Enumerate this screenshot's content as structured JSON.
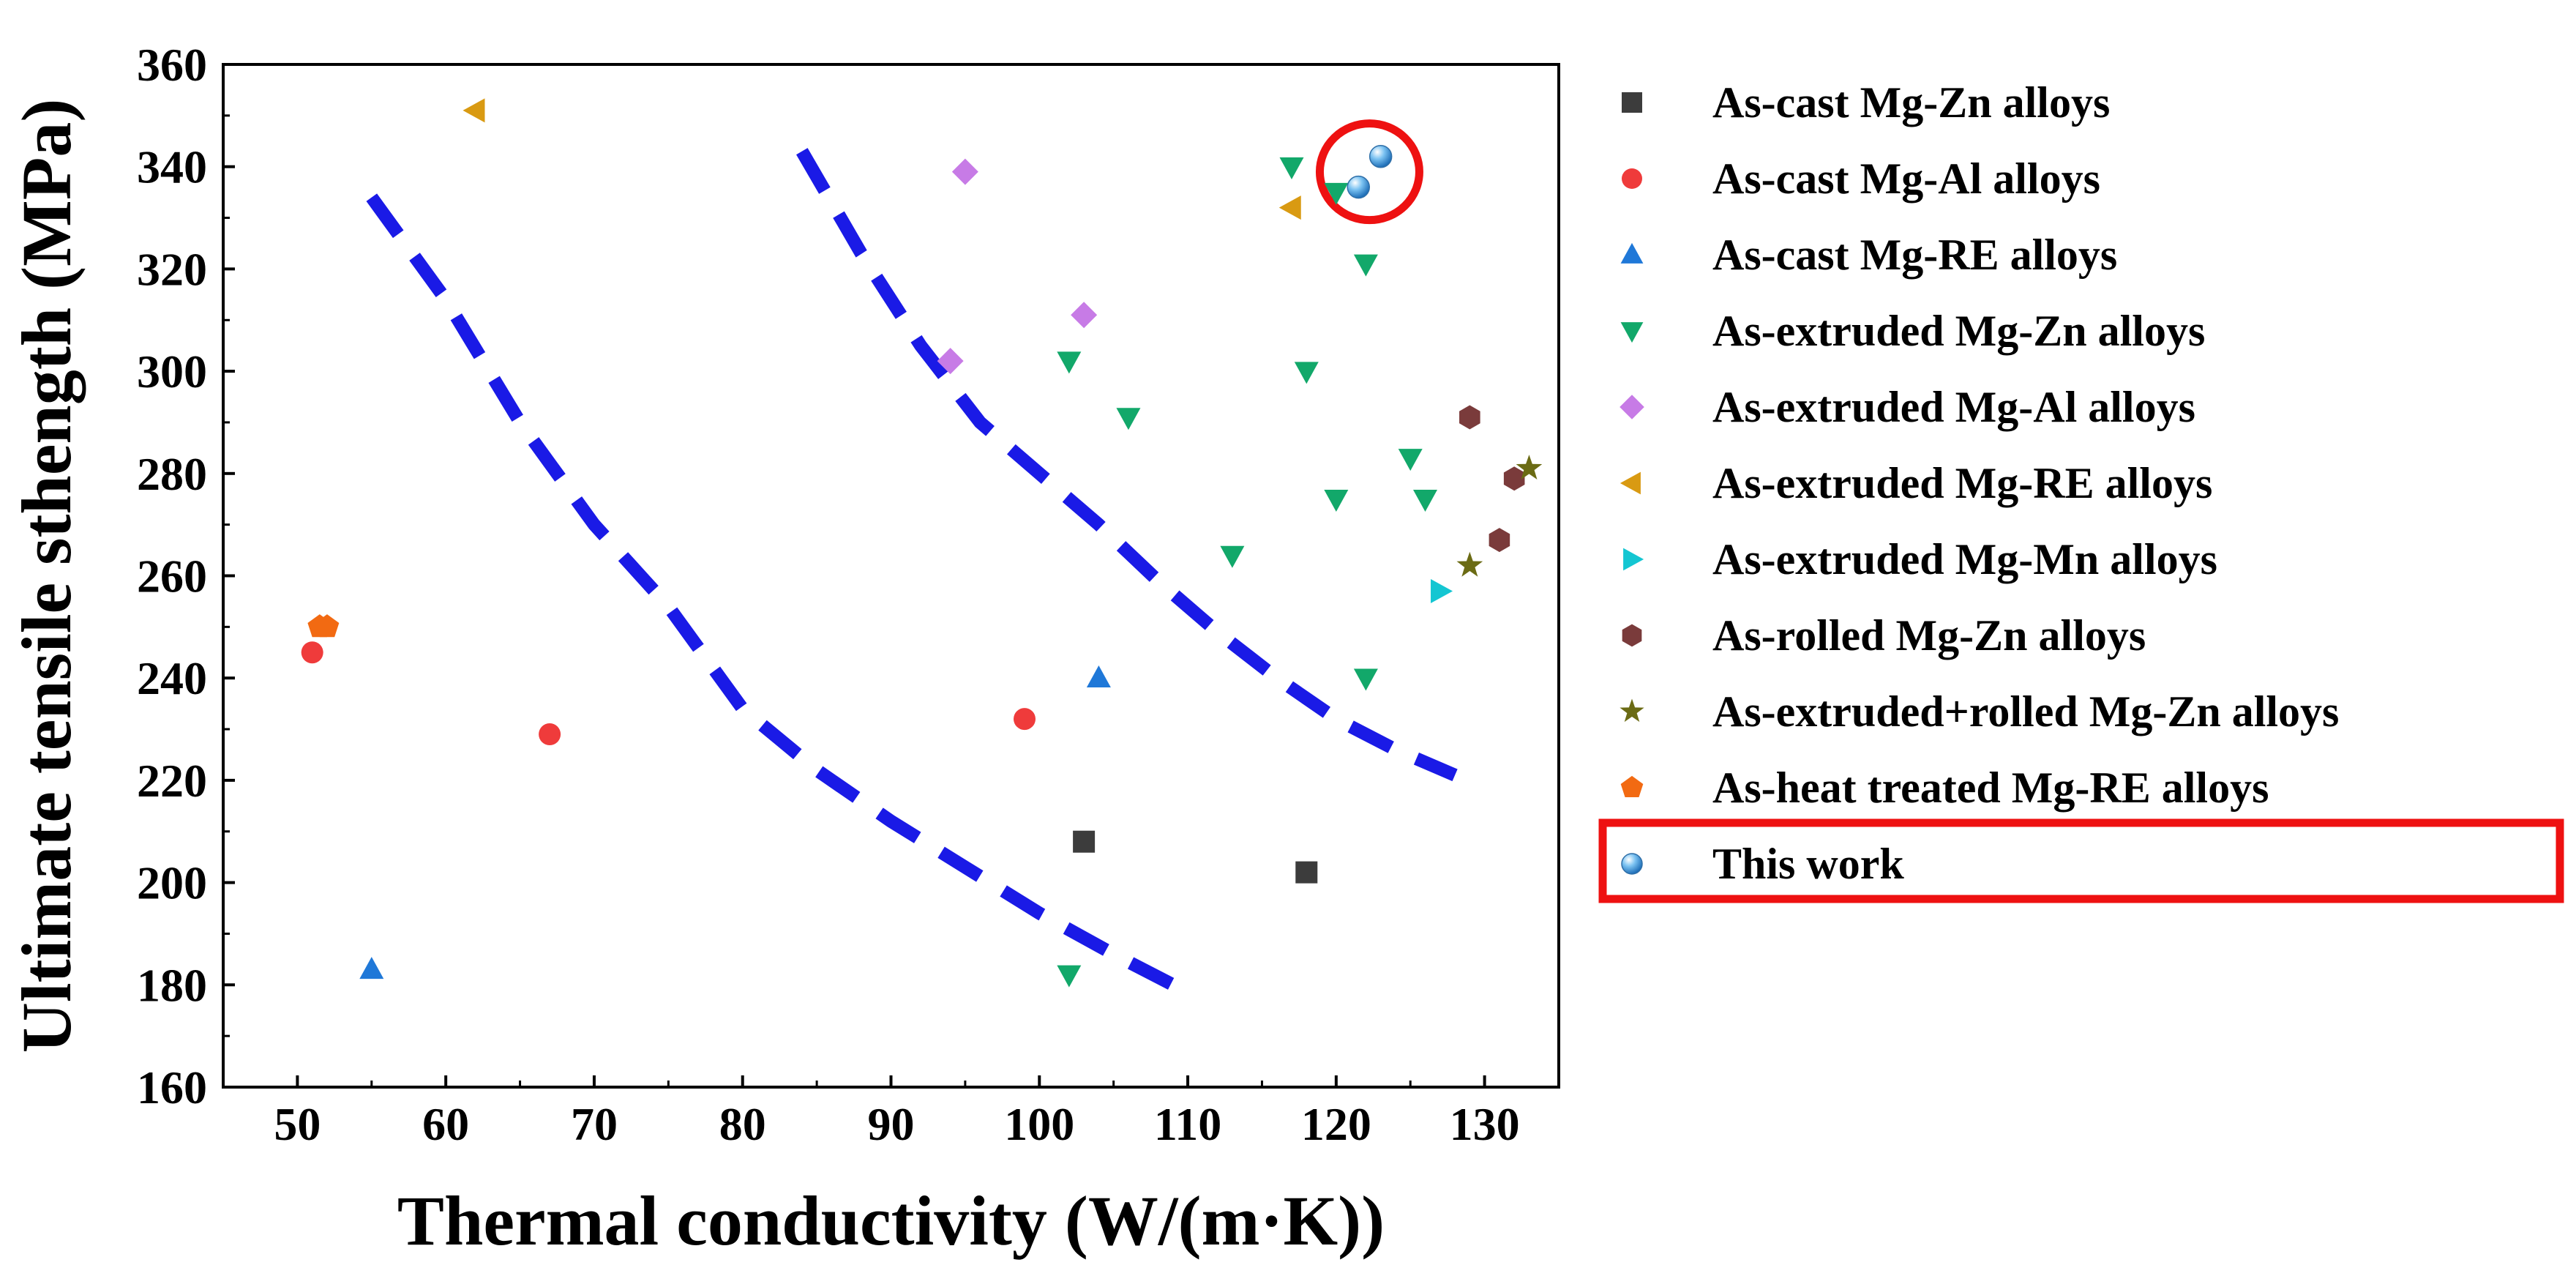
{
  "chart_data": {
    "type": "scatter",
    "title": "",
    "xlabel": "Thermal conductivity (W/(m·K))",
    "ylabel": "Ultimate tensile sthength (MPa)",
    "xlim": [
      45,
      135
    ],
    "ylim": [
      160,
      360
    ],
    "xticks": [
      50,
      60,
      70,
      80,
      90,
      100,
      110,
      120,
      130
    ],
    "yticks": [
      160,
      180,
      200,
      220,
      240,
      260,
      280,
      300,
      320,
      340,
      360
    ],
    "grid": false,
    "legend_position": "right",
    "series": [
      {
        "name": "As-cast Mg-Zn alloys",
        "marker": "square",
        "color": "#3c3c3c",
        "points": [
          [
            103,
            208
          ],
          [
            118,
            202
          ]
        ]
      },
      {
        "name": "As-cast Mg-Al alloys",
        "marker": "circle",
        "color": "#ef3b3b",
        "points": [
          [
            51,
            245
          ],
          [
            67,
            229
          ],
          [
            99,
            232
          ]
        ]
      },
      {
        "name": "As-cast Mg-RE alloys",
        "marker": "triangle-up",
        "color": "#1f78d8",
        "points": [
          [
            55,
            183
          ],
          [
            104,
            240
          ]
        ]
      },
      {
        "name": "As-extruded Mg-Zn alloys",
        "marker": "triangle-down",
        "color": "#12a86a",
        "points": [
          [
            102,
            302
          ],
          [
            106,
            291
          ],
          [
            113,
            264
          ],
          [
            102,
            182
          ],
          [
            117,
            340
          ],
          [
            118,
            300
          ],
          [
            120,
            275
          ],
          [
            122,
            321
          ],
          [
            122,
            240
          ],
          [
            125,
            283
          ],
          [
            126,
            275
          ],
          [
            120,
            335
          ]
        ]
      },
      {
        "name": "As-extruded Mg-Al alloys",
        "marker": "diamond",
        "color": "#c77be6",
        "points": [
          [
            95,
            339
          ],
          [
            103,
            311
          ],
          [
            94,
            302
          ]
        ]
      },
      {
        "name": "As-extruded Mg-RE alloys",
        "marker": "triangle-left",
        "color": "#d99a12",
        "points": [
          [
            62,
            351
          ],
          [
            117,
            332
          ]
        ]
      },
      {
        "name": "As-extruded Mg-Mn alloys",
        "marker": "triangle-right",
        "color": "#14c6d2",
        "points": [
          [
            127,
            257
          ]
        ]
      },
      {
        "name": "As-rolled Mg-Zn alloys",
        "marker": "hexagon",
        "color": "#7a3b3b",
        "points": [
          [
            129,
            291
          ],
          [
            132,
            279
          ],
          [
            131,
            267
          ]
        ]
      },
      {
        "name": "As-extruded+rolled Mg-Zn alloys",
        "marker": "star",
        "color": "#6b6b14",
        "points": [
          [
            129,
            262
          ],
          [
            133,
            281
          ]
        ]
      },
      {
        "name": "As-heat treated Mg-RE alloys",
        "marker": "pentagon",
        "color": "#f26a12",
        "points": [
          [
            52,
            250
          ],
          [
            51.5,
            250
          ]
        ]
      },
      {
        "name": "This work",
        "marker": "sphere",
        "color": "#4aa8e8",
        "points": [
          [
            121.5,
            336
          ],
          [
            123,
            342
          ]
        ]
      }
    ],
    "trend_curves": [
      {
        "name": "left boundary curve",
        "color": "#1a1ae6",
        "style": "dashed",
        "points": [
          [
            55,
            334
          ],
          [
            60,
            314
          ],
          [
            65,
            290
          ],
          [
            70,
            270
          ],
          [
            75,
            254
          ],
          [
            80,
            234
          ],
          [
            85,
            222
          ],
          [
            90,
            212
          ],
          [
            95,
            203
          ],
          [
            100,
            194
          ],
          [
            105,
            186
          ],
          [
            109,
            180
          ]
        ]
      },
      {
        "name": "right boundary curve",
        "color": "#1a1ae6",
        "style": "dashed",
        "points": [
          [
            84,
            343
          ],
          [
            88,
            323
          ],
          [
            92,
            305
          ],
          [
            96,
            290
          ],
          [
            100,
            280
          ],
          [
            104,
            270
          ],
          [
            108,
            259
          ],
          [
            112,
            249
          ],
          [
            116,
            240
          ],
          [
            120,
            232
          ],
          [
            124,
            226
          ],
          [
            128,
            221
          ]
        ]
      }
    ],
    "highlights": [
      {
        "type": "ellipse",
        "target": "This work",
        "color": "#ee1111"
      },
      {
        "type": "legend-box",
        "target": "This work",
        "color": "#ee1111"
      }
    ]
  }
}
